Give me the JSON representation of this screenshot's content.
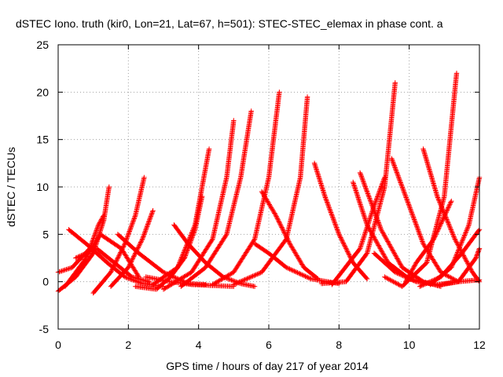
{
  "chart_data": {
    "type": "scatter",
    "title": "dSTEC Iono. truth (kir0, Lon=21, Lat=67, h=501): STEC-STEC_elemax in phase cont. a",
    "xlabel": "GPS time / hours of day 217 of year 2014",
    "ylabel": "dSTEC  / TECUs",
    "xlim": [
      0,
      12
    ],
    "ylim": [
      -5,
      25
    ],
    "x_ticks": [
      0,
      2,
      4,
      6,
      8,
      10,
      12
    ],
    "y_ticks": [
      -5,
      0,
      5,
      10,
      15,
      20,
      25
    ],
    "grid": true,
    "marker": "+",
    "color": "#ff0000",
    "series": [
      {
        "x": [
          0.0,
          0.5,
          1.0,
          1.3,
          1.45
        ],
        "y": [
          -1.0,
          0.5,
          3.0,
          6.5,
          10.0
        ]
      },
      {
        "x": [
          0.0,
          0.4,
          0.9,
          1.15,
          1.3
        ],
        "y": [
          1.0,
          1.5,
          3.5,
          6.0,
          7.0
        ]
      },
      {
        "x": [
          0.2,
          0.7,
          1.2,
          1.8,
          2.3
        ],
        "y": [
          -0.5,
          2.0,
          5.0,
          3.5,
          0.5
        ]
      },
      {
        "x": [
          0.3,
          0.8,
          1.4,
          1.9,
          2.4,
          3.0
        ],
        "y": [
          5.5,
          4.0,
          2.0,
          0.5,
          -0.2,
          -0.5
        ]
      },
      {
        "x": [
          0.5,
          1.1,
          1.6,
          2.1,
          2.6
        ],
        "y": [
          2.5,
          3.5,
          2.0,
          0.5,
          0.0
        ]
      },
      {
        "x": [
          1.0,
          1.5,
          1.9,
          2.2,
          2.45
        ],
        "y": [
          -1.2,
          1.0,
          4.0,
          7.0,
          11.0
        ]
      },
      {
        "x": [
          1.5,
          2.0,
          2.4,
          2.7
        ],
        "y": [
          -0.5,
          1.5,
          4.5,
          7.5
        ]
      },
      {
        "x": [
          1.7,
          2.3,
          3.0,
          3.7,
          4.2
        ],
        "y": [
          5.0,
          3.0,
          1.0,
          -0.2,
          -0.3
        ]
      },
      {
        "x": [
          2.2,
          2.8,
          3.2,
          3.6,
          3.9,
          4.1
        ],
        "y": [
          -0.5,
          -0.8,
          0.5,
          2.5,
          5.5,
          9.0
        ]
      },
      {
        "x": [
          2.5,
          3.2,
          3.8,
          4.4,
          5.0
        ],
        "y": [
          0.5,
          0.0,
          -0.3,
          -0.4,
          -0.5
        ]
      },
      {
        "x": [
          2.7,
          3.4,
          3.9,
          4.3
        ],
        "y": [
          -0.3,
          1.5,
          6.0,
          14.0
        ]
      },
      {
        "x": [
          3.3,
          3.7,
          4.2,
          4.7,
          5.2,
          5.6
        ],
        "y": [
          6.0,
          4.0,
          2.0,
          0.5,
          -0.2,
          -0.5
        ]
      },
      {
        "x": [
          3.0,
          3.8,
          4.4,
          4.8,
          5.0
        ],
        "y": [
          -0.8,
          1.0,
          4.5,
          11.0,
          17.0
        ]
      },
      {
        "x": [
          3.5,
          4.2,
          4.8,
          5.2,
          5.5
        ],
        "y": [
          -0.5,
          1.5,
          5.0,
          11.0,
          18.0
        ]
      },
      {
        "x": [
          4.4,
          5.0,
          5.6,
          6.0,
          6.3
        ],
        "y": [
          -0.3,
          1.0,
          4.5,
          11.0,
          20.0
        ]
      },
      {
        "x": [
          5.0,
          5.8,
          6.5,
          6.9,
          7.1
        ],
        "y": [
          -0.3,
          1.0,
          4.5,
          11.0,
          19.5
        ]
      },
      {
        "x": [
          5.6,
          6.0,
          6.5,
          7.2,
          8.0
        ],
        "y": [
          4.0,
          3.0,
          1.5,
          0.3,
          -0.2
        ]
      },
      {
        "x": [
          5.8,
          6.2,
          6.6,
          7.0,
          7.4
        ],
        "y": [
          9.5,
          7.0,
          4.0,
          1.5,
          0.3
        ]
      },
      {
        "x": [
          7.3,
          7.6,
          8.0,
          8.4,
          8.8
        ],
        "y": [
          12.5,
          9.0,
          5.0,
          2.0,
          0.3
        ]
      },
      {
        "x": [
          7.5,
          8.2,
          8.8,
          9.3,
          9.6
        ],
        "y": [
          -0.2,
          0.0,
          3.0,
          10.0,
          21.0
        ]
      },
      {
        "x": [
          7.8,
          8.6,
          9.0,
          9.3
        ],
        "y": [
          -0.3,
          3.5,
          8.0,
          11.0
        ]
      },
      {
        "x": [
          8.4,
          8.8,
          9.4,
          10.0,
          10.6
        ],
        "y": [
          10.5,
          6.0,
          2.0,
          0.3,
          -0.2
        ]
      },
      {
        "x": [
          8.6,
          9.2,
          9.8,
          10.4,
          10.9
        ],
        "y": [
          11.5,
          5.5,
          1.5,
          0.0,
          -0.5
        ]
      },
      {
        "x": [
          9.0,
          9.6,
          10.2,
          10.8,
          11.4,
          12.0
        ],
        "y": [
          3.0,
          1.0,
          0.0,
          -0.3,
          0.0,
          0.2
        ]
      },
      {
        "x": [
          9.5,
          9.9,
          10.4,
          10.9,
          11.4
        ],
        "y": [
          13.0,
          9.0,
          4.0,
          1.0,
          0.0
        ]
      },
      {
        "x": [
          9.3,
          9.8,
          10.5,
          11.0,
          11.35
        ],
        "y": [
          0.5,
          -0.5,
          2.0,
          9.0,
          22.0
        ]
      },
      {
        "x": [
          9.9,
          10.2,
          10.7,
          11.2
        ],
        "y": [
          0.0,
          2.0,
          4.5,
          8.5
        ]
      },
      {
        "x": [
          10.4,
          10.8,
          11.3,
          11.8,
          12.0
        ],
        "y": [
          14.0,
          9.0,
          4.5,
          1.0,
          0.0
        ]
      },
      {
        "x": [
          10.6,
          11.2,
          11.7,
          12.0
        ],
        "y": [
          -0.3,
          1.5,
          6.0,
          11.0
        ]
      },
      {
        "x": [
          10.3,
          10.9,
          11.5,
          12.0
        ],
        "y": [
          -0.5,
          0.5,
          3.0,
          5.5
        ]
      },
      {
        "x": [
          10.8,
          11.4,
          11.9,
          12.0
        ],
        "y": [
          -0.4,
          0.0,
          2.5,
          3.5
        ]
      }
    ]
  }
}
